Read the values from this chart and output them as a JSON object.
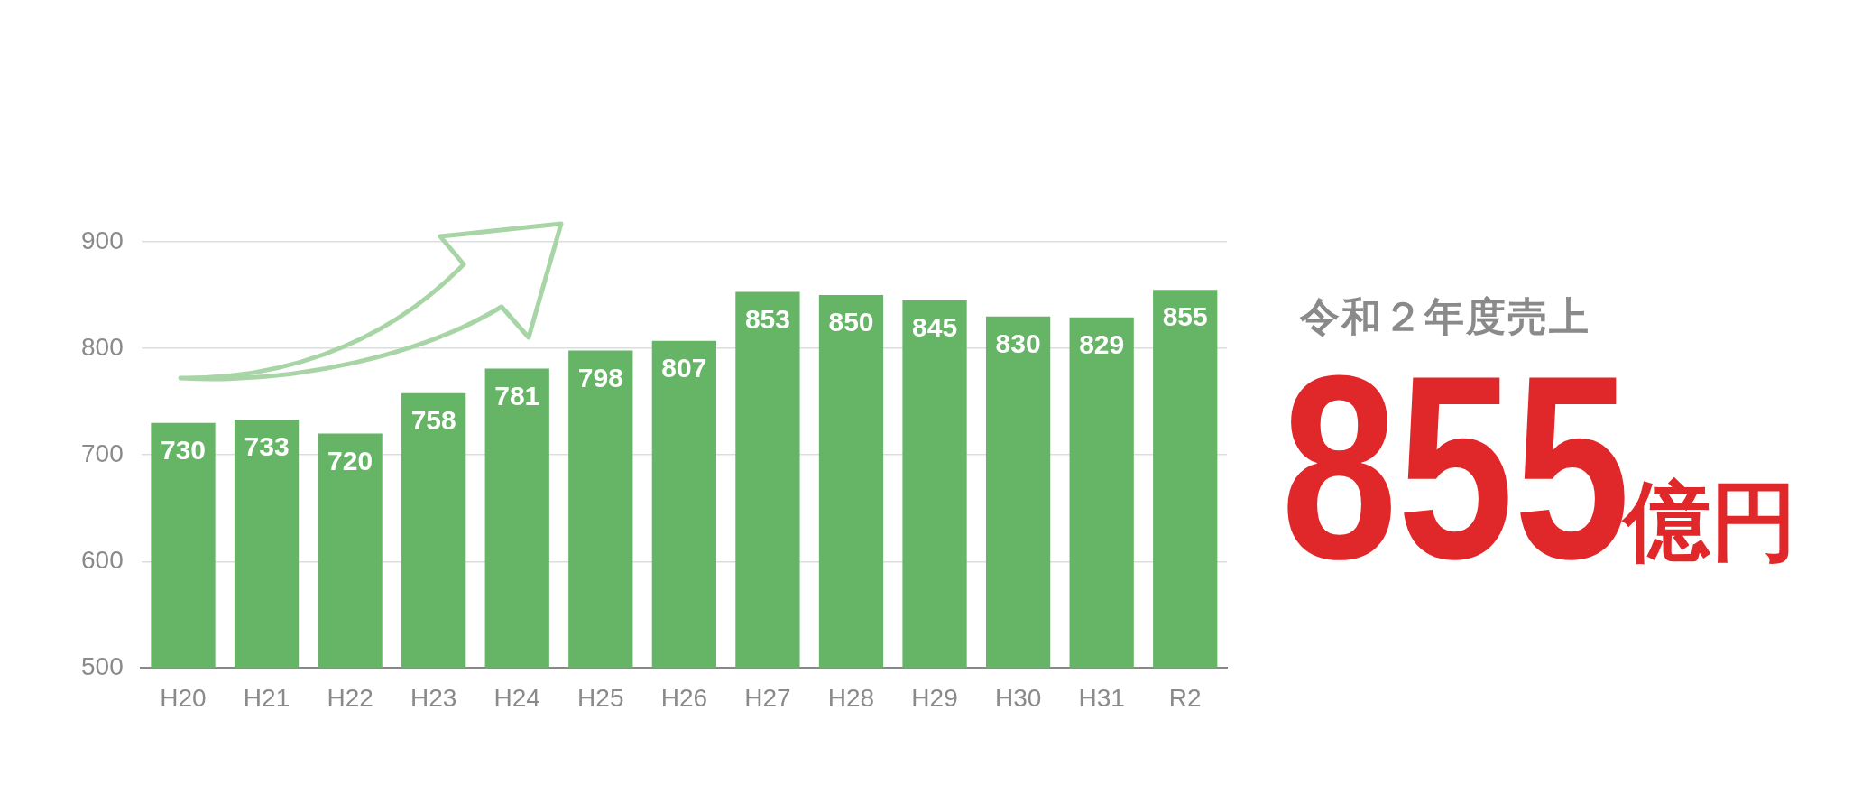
{
  "chart_data": {
    "type": "bar",
    "categories": [
      "H20",
      "H21",
      "H22",
      "H23",
      "H24",
      "H25",
      "H26",
      "H27",
      "H28",
      "H29",
      "H30",
      "H31",
      "R2"
    ],
    "values": [
      730,
      733,
      720,
      758,
      781,
      798,
      807,
      853,
      850,
      845,
      830,
      829,
      855
    ],
    "color": "#66b566",
    "ylim": [
      500,
      900
    ],
    "yticks": [
      500,
      600,
      700,
      800,
      900
    ],
    "grid": "y",
    "data_labels": true,
    "annotations": [
      "令和２年度売上",
      "855",
      "億円"
    ]
  }
}
